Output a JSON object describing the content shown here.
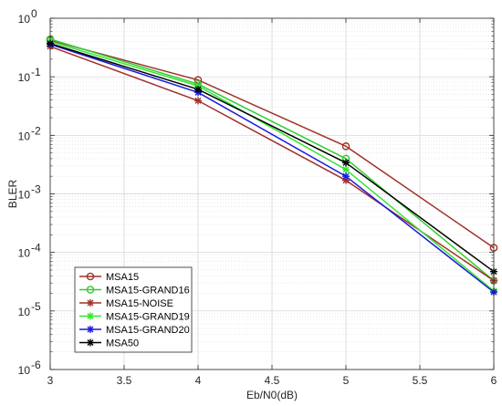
{
  "chart_data": {
    "type": "line",
    "xlabel": "Eb/N0(dB)",
    "ylabel": "BLER",
    "y_scale": "log",
    "xlim": [
      3,
      6
    ],
    "ylim": [
      1e-06,
      1
    ],
    "x_ticks": [
      "3",
      "3.5",
      "4",
      "4.5",
      "5",
      "5.5",
      "6"
    ],
    "x_tick_values": [
      3,
      3.5,
      4,
      4.5,
      5,
      5.5,
      6
    ],
    "y_tick_values": [
      1e-06,
      1e-05,
      0.0001,
      0.001,
      0.01,
      0.1,
      1
    ],
    "y_ticks": [
      {
        "base": "10",
        "exp": "-6"
      },
      {
        "base": "10",
        "exp": "-5"
      },
      {
        "base": "10",
        "exp": "-4"
      },
      {
        "base": "10",
        "exp": "-3"
      },
      {
        "base": "10",
        "exp": "-2"
      },
      {
        "base": "10",
        "exp": "-1"
      },
      {
        "base": "10",
        "exp": "0"
      }
    ],
    "grid": true,
    "legend_position": "bottom-left",
    "x": [
      3,
      4,
      5,
      6
    ],
    "series": [
      {
        "name": "MSA15",
        "color": "#a0322a",
        "marker": "circle",
        "values": [
          0.42,
          0.088,
          0.0065,
          0.00012
        ]
      },
      {
        "name": "MSA15-GRAND16",
        "color": "#32cd32",
        "marker": "circle",
        "values": [
          0.44,
          0.075,
          0.004,
          3.3e-05
        ]
      },
      {
        "name": "MSA15-NOISE",
        "color": "#a0322a",
        "marker": "asterisk",
        "values": [
          0.33,
          0.039,
          0.0017,
          3.3e-05
        ]
      },
      {
        "name": "MSA15-GRAND19",
        "color": "#32e632",
        "marker": "asterisk",
        "values": [
          0.4,
          0.07,
          0.0026,
          2.2e-05
        ]
      },
      {
        "name": "MSA15-GRAND20",
        "color": "#1a1adc",
        "marker": "asterisk",
        "values": [
          0.36,
          0.054,
          0.002,
          2.1e-05
        ]
      },
      {
        "name": "MSA50",
        "color": "#000000",
        "marker": "asterisk",
        "values": [
          0.37,
          0.061,
          0.0034,
          4.7e-05
        ]
      }
    ]
  }
}
